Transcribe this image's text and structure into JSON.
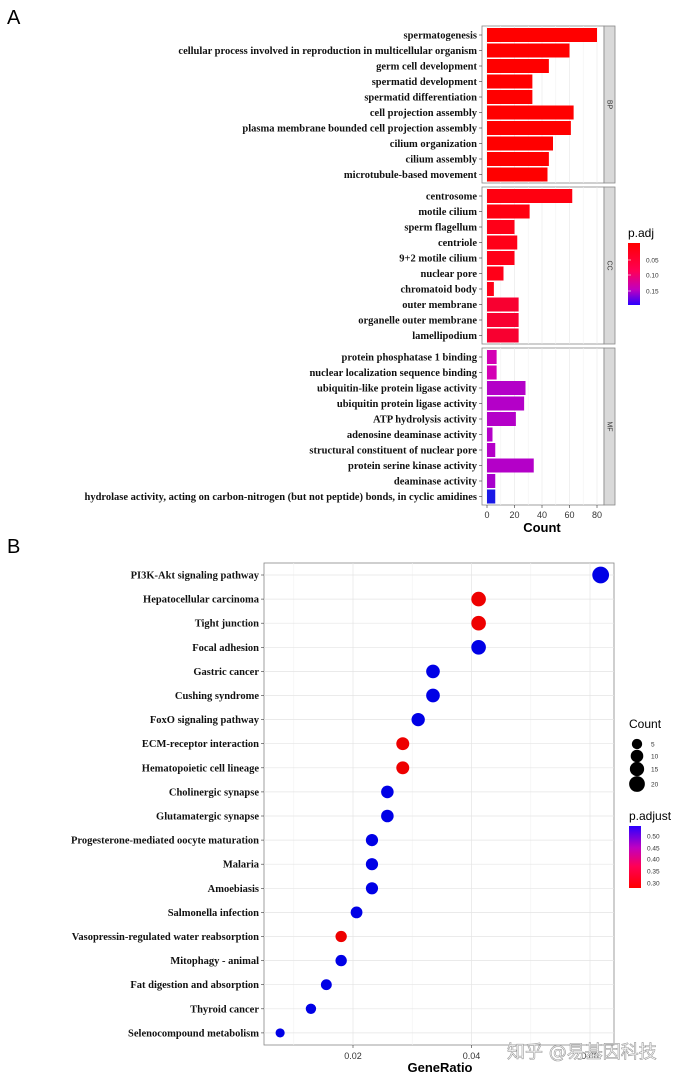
{
  "chart_data": [
    {
      "panel": "A",
      "type": "bar",
      "orientation": "horizontal",
      "xlabel": "Count",
      "xlim": [
        0,
        85
      ],
      "xticks": [
        0,
        20,
        40,
        60,
        80
      ],
      "legend": {
        "title": "p.adj",
        "ticks": [
          "0.05",
          "0.10",
          "0.15"
        ],
        "colors": [
          "#ff0000",
          "#2a00ff"
        ],
        "placement": "right"
      },
      "facets": [
        {
          "name": "BP",
          "categories": [
            "spermatogenesis",
            "cellular process involved in reproduction in multicellular organism",
            "germ cell development",
            "spermatid development",
            "spermatid differentiation",
            "cell projection assembly",
            "plasma membrane bounded cell projection assembly",
            "cilium organization",
            "cilium assembly",
            "microtubule-based movement"
          ],
          "values": [
            80,
            60,
            45,
            33,
            33,
            63,
            61,
            48,
            45,
            44
          ],
          "colors": [
            "#ff0000",
            "#ff0000",
            "#ff0000",
            "#ff0000",
            "#ff0000",
            "#ff0000",
            "#ff0000",
            "#ff0000",
            "#ff0000",
            "#ff0000"
          ]
        },
        {
          "name": "CC",
          "categories": [
            "centrosome",
            "motile cilium",
            "sperm flagellum",
            "centriole",
            "9+2 motile cilium",
            "nuclear pore",
            "chromatoid body",
            "outer membrane",
            "organelle outer membrane",
            "lamellipodium"
          ],
          "values": [
            62,
            31,
            20,
            22,
            20,
            12,
            5,
            23,
            23,
            23
          ],
          "colors": [
            "#ff0010",
            "#ff0010",
            "#ff0018",
            "#ff0018",
            "#ff0018",
            "#ff0018",
            "#ff0018",
            "#f80030",
            "#f80030",
            "#f80030"
          ]
        },
        {
          "name": "MF",
          "categories": [
            "protein phosphatase 1 binding",
            "nuclear localization sequence binding",
            "ubiquitin-like protein ligase activity",
            "ubiquitin protein ligase activity",
            "ATP hydrolysis activity",
            "adenosine deaminase activity",
            "structural constituent of nuclear pore",
            "protein serine kinase activity",
            "deaminase activity",
            "hydrolase activity, acting on carbon-nitrogen (but not peptide) bonds, in cyclic amidines"
          ],
          "values": [
            7,
            7,
            28,
            27,
            21,
            4,
            6,
            34,
            6,
            6
          ],
          "colors": [
            "#d400b4",
            "#d400b4",
            "#b400c8",
            "#b400c8",
            "#b400c8",
            "#b400c8",
            "#b400c8",
            "#b400c8",
            "#a800cc",
            "#1a18e6"
          ]
        }
      ]
    },
    {
      "panel": "B",
      "type": "scatter",
      "xlabel": "GeneRatio",
      "xlim": [
        0.0065,
        0.065
      ],
      "xticks": [
        0.02,
        0.04,
        0.06
      ],
      "xticklabels": [
        "0.02",
        "0.04",
        "0.06"
      ],
      "grid": true,
      "categories": [
        "PI3K-Akt signaling pathway",
        "Hepatocellular carcinoma",
        "Tight junction",
        "Focal adhesion",
        "Gastric cancer",
        "Cushing syndrome",
        "FoxO signaling pathway",
        "ECM-receptor interaction",
        "Hematopoietic cell lineage",
        "Cholinergic synapse",
        "Glutamatergic synapse",
        "Progesterone-mediated oocyte maturation",
        "Malaria",
        "Amoebiasis",
        "Salmonella infection",
        "Vasopressin-regulated water reabsorption",
        "Mitophagy - animal",
        "Fat digestion and absorption",
        "Thyroid cancer",
        "Selenocompound metabolism"
      ],
      "x": [
        0.0618,
        0.0412,
        0.0412,
        0.0412,
        0.0335,
        0.0335,
        0.031,
        0.0284,
        0.0284,
        0.0258,
        0.0258,
        0.0232,
        0.0232,
        0.0232,
        0.0206,
        0.018,
        0.018,
        0.0155,
        0.0129,
        0.0077
      ],
      "count": [
        24,
        16,
        16,
        16,
        13,
        13,
        12,
        11,
        11,
        10,
        10,
        9,
        9,
        9,
        8,
        7,
        7,
        6,
        5,
        3
      ],
      "colors": [
        "#0000e6",
        "#ee0000",
        "#ee0000",
        "#0000e6",
        "#0000e6",
        "#0000e6",
        "#0000e6",
        "#ee0000",
        "#ee0000",
        "#0000e6",
        "#0000e6",
        "#0000e6",
        "#0000e6",
        "#0000e6",
        "#0000e6",
        "#ee0000",
        "#0000e6",
        "#0000e6",
        "#0000e6",
        "#0000e6"
      ],
      "legend_count": {
        "title": "Count",
        "values": [
          5,
          10,
          15,
          20
        ]
      },
      "legend_color": {
        "title": "p.adjust",
        "ticks": [
          "0.50",
          "0.45",
          "0.40",
          "0.35",
          "0.30"
        ],
        "colors": [
          "#2a00ff",
          "#ff0000"
        ]
      }
    }
  ],
  "panel_labels": [
    "A",
    "B"
  ],
  "watermark": "知乎 @易基因科技"
}
